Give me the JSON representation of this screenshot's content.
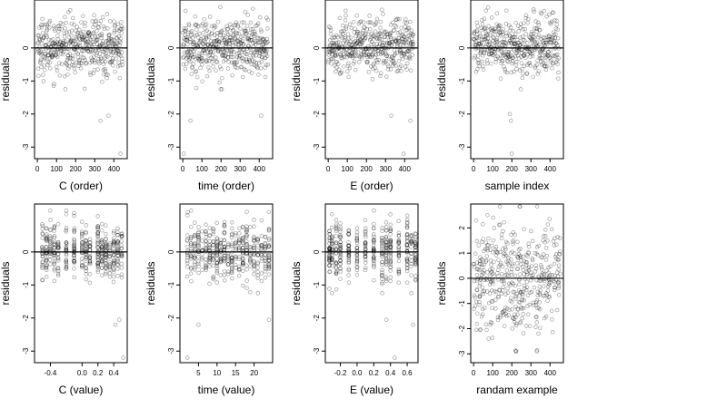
{
  "chart_data": [
    {
      "type": "scatter",
      "xlabel": "C (order)",
      "ylabel": "residuals",
      "x_ticks": [
        0,
        100,
        200,
        300,
        400
      ],
      "y_ticks": [
        -3,
        -2,
        -1,
        0
      ],
      "xlim": [
        -15,
        470
      ],
      "ylim": [
        -3.35,
        1.45
      ],
      "hline": 0,
      "grid": false,
      "n_points": 450,
      "pattern": "order",
      "outliers": [
        [
          330,
          -2.2
        ],
        [
          372,
          -2.05
        ],
        [
          435,
          -3.2
        ]
      ]
    },
    {
      "type": "scatter",
      "xlabel": "time (order)",
      "ylabel": "residuals",
      "x_ticks": [
        0,
        100,
        200,
        300,
        400
      ],
      "y_ticks": [
        -3,
        -2,
        -1,
        0
      ],
      "xlim": [
        -15,
        470
      ],
      "ylim": [
        -3.35,
        1.45
      ],
      "hline": 0,
      "grid": false,
      "n_points": 450,
      "pattern": "order",
      "outliers": [
        [
          5,
          -3.2
        ],
        [
          40,
          -2.2
        ],
        [
          410,
          -2.05
        ]
      ]
    },
    {
      "type": "scatter",
      "xlabel": "E (order)",
      "ylabel": "residuals",
      "x_ticks": [
        0,
        100,
        200,
        300,
        400
      ],
      "y_ticks": [
        -3,
        -2,
        -1,
        0
      ],
      "xlim": [
        -15,
        470
      ],
      "ylim": [
        -3.35,
        1.45
      ],
      "hline": 0,
      "grid": false,
      "n_points": 450,
      "pattern": "order",
      "outliers": [
        [
          330,
          -2.05
        ],
        [
          395,
          -3.2
        ],
        [
          430,
          -2.2
        ]
      ]
    },
    {
      "type": "scatter",
      "xlabel": "sample index",
      "ylabel": "residuals",
      "x_ticks": [
        0,
        100,
        200,
        300,
        400
      ],
      "y_ticks": [
        -3,
        -2,
        -1,
        0
      ],
      "xlim": [
        -15,
        470
      ],
      "ylim": [
        -3.35,
        1.45
      ],
      "hline": 0,
      "grid": false,
      "n_points": 450,
      "pattern": "order",
      "outliers": [
        [
          190,
          -2.0
        ],
        [
          195,
          -2.2
        ],
        [
          200,
          -3.2
        ]
      ]
    },
    {
      "type": "scatter",
      "xlabel": "C (value)",
      "ylabel": "residuals",
      "x_ticks": [
        -0.4,
        0.0,
        0.2,
        0.4
      ],
      "x_ticklabels": [
        "-0.4",
        "0.0",
        "0.2",
        "0.4"
      ],
      "y_ticks": [
        -3,
        -2,
        -1,
        0
      ],
      "xlim": [
        -0.6,
        0.57
      ],
      "ylim": [
        -3.35,
        1.45
      ],
      "hline": 0,
      "grid": false,
      "n_points": 450,
      "pattern": "levels",
      "levels": [
        -0.5,
        -0.45,
        -0.4,
        -0.35,
        -0.3,
        -0.2,
        -0.1,
        0.0,
        0.05,
        0.1,
        0.2,
        0.25,
        0.3,
        0.35,
        0.4,
        0.45,
        0.5
      ],
      "outliers": [
        [
          0.42,
          -2.2
        ],
        [
          0.47,
          -2.05
        ],
        [
          0.52,
          -3.2
        ]
      ]
    },
    {
      "type": "scatter",
      "xlabel": "time (value)",
      "ylabel": "residuals",
      "x_ticks": [
        5,
        10,
        15,
        20
      ],
      "y_ticks": [
        -3,
        -2,
        -1,
        0
      ],
      "xlim": [
        0,
        25
      ],
      "ylim": [
        -3.35,
        1.45
      ],
      "hline": 0,
      "grid": false,
      "n_points": 450,
      "pattern": "levels",
      "levels": [
        2,
        3,
        4,
        5,
        6,
        7,
        8,
        9,
        10,
        11,
        12,
        13,
        14,
        15,
        16,
        17,
        18,
        19,
        20,
        21,
        22,
        23,
        24
      ],
      "outliers": [
        [
          2,
          -3.2
        ],
        [
          5,
          -2.2
        ],
        [
          24,
          -2.05
        ]
      ]
    },
    {
      "type": "scatter",
      "xlabel": "E (value)",
      "ylabel": "residuals",
      "x_ticks": [
        -0.2,
        0.0,
        0.2,
        0.4,
        0.6
      ],
      "x_ticklabels": [
        "-0.2",
        "0.0",
        "0.2",
        "0.4",
        "0.6"
      ],
      "y_ticks": [
        -3,
        -2,
        -1,
        0
      ],
      "xlim": [
        -0.38,
        0.73
      ],
      "ylim": [
        -3.35,
        1.45
      ],
      "hline": 0,
      "grid": false,
      "n_points": 450,
      "pattern": "levels",
      "levels": [
        -0.33,
        -0.3,
        -0.25,
        -0.2,
        -0.1,
        0.0,
        0.1,
        0.2,
        0.3,
        0.35,
        0.4,
        0.5,
        0.6,
        0.65,
        0.7
      ],
      "outliers": [
        [
          0.35,
          -2.05
        ],
        [
          0.45,
          -3.2
        ],
        [
          0.67,
          -2.2
        ]
      ]
    },
    {
      "type": "scatter",
      "xlabel": "randam example",
      "ylabel": "residuals",
      "x_ticks": [
        0,
        100,
        200,
        300,
        400
      ],
      "y_ticks": [
        -3,
        -2,
        -1,
        0,
        1,
        2
      ],
      "xlim": [
        -15,
        470
      ],
      "ylim": [
        -3.35,
        2.95
      ],
      "hline": 0,
      "grid": false,
      "n_points": 450,
      "pattern": "random",
      "outliers": []
    }
  ]
}
